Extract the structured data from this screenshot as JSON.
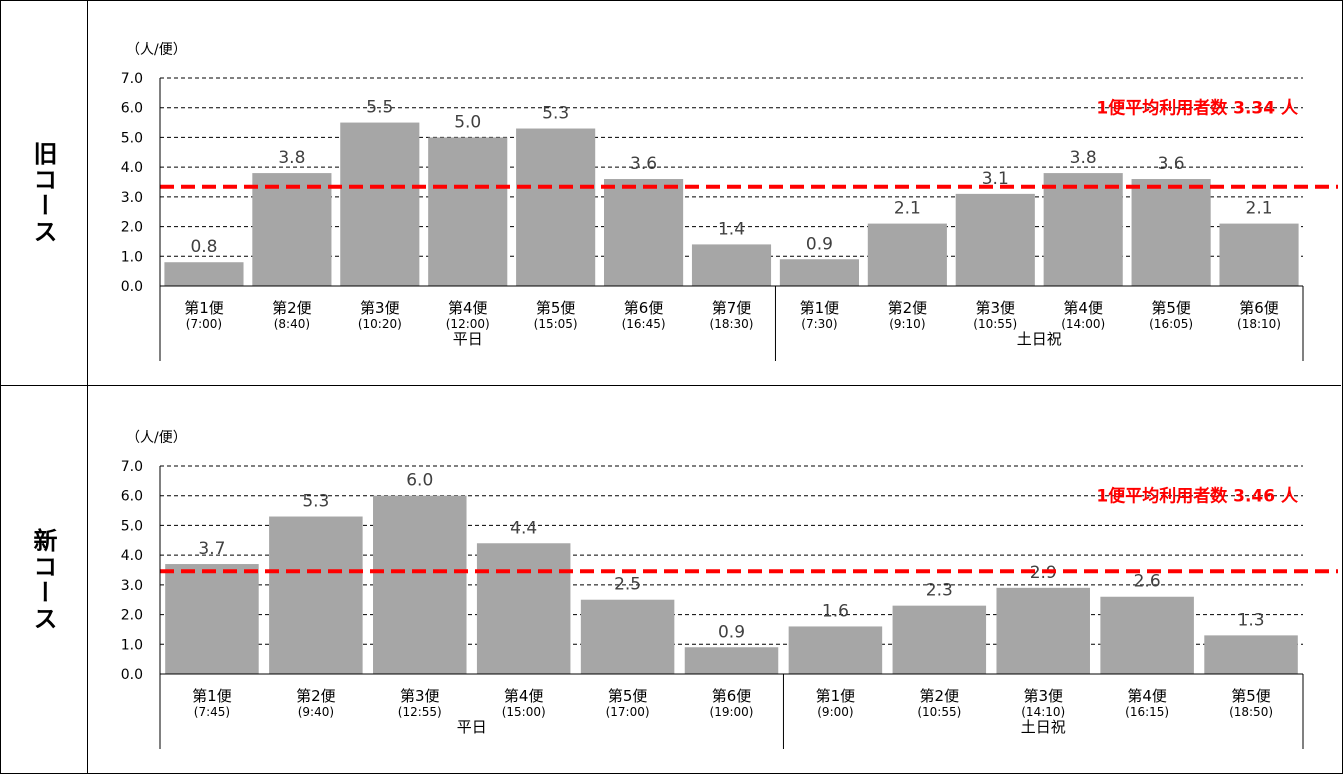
{
  "rows": [
    {
      "label": "旧コース"
    },
    {
      "label": "新コース"
    }
  ],
  "colors": {
    "bar": "#a6a6a6",
    "average_line": "#ff0000",
    "average_text": "#ff0000",
    "grid": "#000000"
  },
  "chart_data": [
    {
      "type": "bar",
      "title": "",
      "unit_label": "（人/便）",
      "ylim": [
        0,
        7
      ],
      "yticks": [
        "0.0",
        "1.0",
        "2.0",
        "3.0",
        "4.0",
        "5.0",
        "6.0",
        "7.0"
      ],
      "grid": "dashed-horizontal",
      "categories": [
        {
          "name": "第1便",
          "time": "(7:00)"
        },
        {
          "name": "第2便",
          "time": "(8:40)"
        },
        {
          "name": "第3便",
          "time": "(10:20)"
        },
        {
          "name": "第4便",
          "time": "(12:00)"
        },
        {
          "name": "第5便",
          "time": "(15:05)"
        },
        {
          "name": "第6便",
          "time": "(16:45)"
        },
        {
          "name": "第7便",
          "time": "(18:30)"
        },
        {
          "name": "第1便",
          "time": "(7:30)"
        },
        {
          "name": "第2便",
          "time": "(9:10)"
        },
        {
          "name": "第3便",
          "time": "(10:55)"
        },
        {
          "name": "第4便",
          "time": "(14:00)"
        },
        {
          "name": "第5便",
          "time": "(16:05)"
        },
        {
          "name": "第6便",
          "time": "(18:10)"
        }
      ],
      "values": [
        0.8,
        3.8,
        5.5,
        5.0,
        5.3,
        3.6,
        1.4,
        0.9,
        2.1,
        3.1,
        3.8,
        3.6,
        2.1
      ],
      "value_labels": [
        "0.8",
        "3.8",
        "5.5",
        "5.0",
        "5.3",
        "3.6",
        "1.4",
        "0.9",
        "2.1",
        "3.1",
        "3.8",
        "3.6",
        "2.1"
      ],
      "groups": [
        {
          "name": "平日",
          "count": 7
        },
        {
          "name": "土日祝",
          "count": 6
        }
      ],
      "average": {
        "value": 3.34,
        "label": "1便平均利用者数 3.34 人"
      }
    },
    {
      "type": "bar",
      "title": "",
      "unit_label": "（人/便）",
      "ylim": [
        0,
        7
      ],
      "yticks": [
        "0.0",
        "1.0",
        "2.0",
        "3.0",
        "4.0",
        "5.0",
        "6.0",
        "7.0"
      ],
      "grid": "dashed-horizontal",
      "categories": [
        {
          "name": "第1便",
          "time": "(7:45)"
        },
        {
          "name": "第2便",
          "time": "(9:40)"
        },
        {
          "name": "第3便",
          "time": "(12:55)"
        },
        {
          "name": "第4便",
          "time": "(15:00)"
        },
        {
          "name": "第5便",
          "time": "(17:00)"
        },
        {
          "name": "第6便",
          "time": "(19:00)"
        },
        {
          "name": "第1便",
          "time": "(9:00)"
        },
        {
          "name": "第2便",
          "time": "(10:55)"
        },
        {
          "name": "第3便",
          "time": "(14:10)"
        },
        {
          "name": "第4便",
          "time": "(16:15)"
        },
        {
          "name": "第5便",
          "time": "(18:50)"
        }
      ],
      "values": [
        3.7,
        5.3,
        6.0,
        4.4,
        2.5,
        0.9,
        1.6,
        2.3,
        2.9,
        2.6,
        1.3
      ],
      "value_labels": [
        "3.7",
        "5.3",
        "6.0",
        "4.4",
        "2.5",
        "0.9",
        "1.6",
        "2.3",
        "2.9",
        "2.6",
        "1.3"
      ],
      "groups": [
        {
          "name": "平日",
          "count": 6
        },
        {
          "name": "土日祝",
          "count": 5
        }
      ],
      "average": {
        "value": 3.46,
        "label": "1便平均利用者数 3.46 人"
      }
    }
  ]
}
